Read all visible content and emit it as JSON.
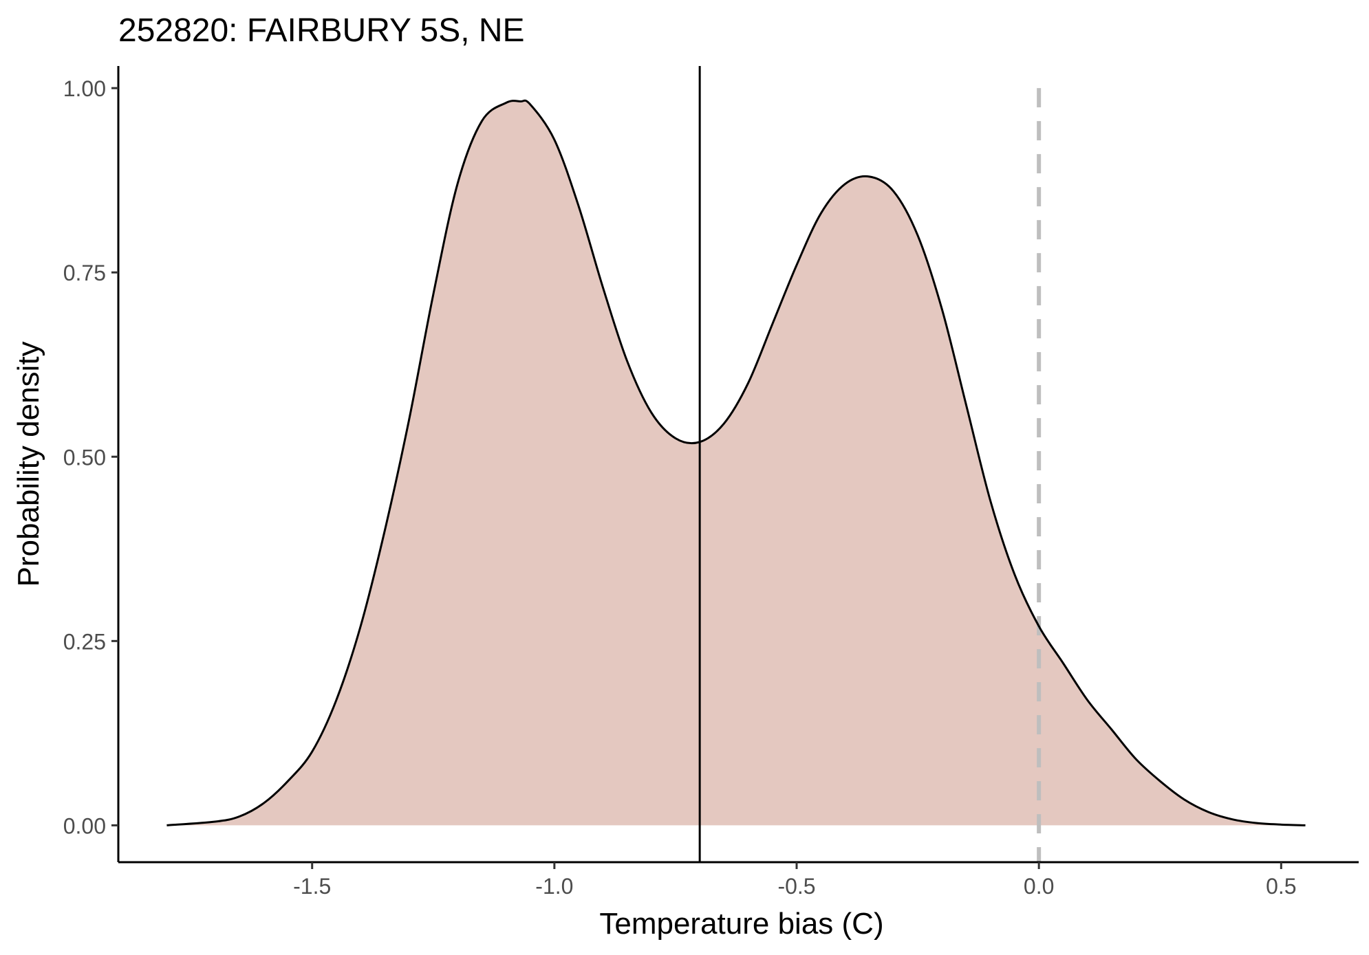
{
  "chart_data": {
    "type": "area",
    "title": "252820: FAIRBURY 5S, NE",
    "xlabel": "Temperature bias (C)",
    "ylabel": "Probability density",
    "xlim": [
      -1.9,
      0.66
    ],
    "ylim": [
      -0.05,
      1.03
    ],
    "x_ticks": [
      -1.5,
      -1.0,
      -0.5,
      0.0,
      0.5
    ],
    "x_tick_labels": [
      "-1.5",
      "-1.0",
      "-0.5",
      "0.0",
      "0.5"
    ],
    "y_ticks": [
      0.0,
      0.25,
      0.5,
      0.75,
      1.0
    ],
    "y_tick_labels": [
      "0.00",
      "0.25",
      "0.50",
      "0.75",
      "1.00"
    ],
    "grid": false,
    "fill_color": "#e4c8c0",
    "line_color": "#000000",
    "reference_lines": [
      {
        "x": -0.7,
        "style": "solid",
        "color": "#000000"
      },
      {
        "x": 0.0,
        "style": "dashed",
        "color": "#bebebe"
      }
    ],
    "series": [
      {
        "x": [
          -1.8,
          -1.7,
          -1.65,
          -1.6,
          -1.55,
          -1.5,
          -1.45,
          -1.4,
          -1.35,
          -1.3,
          -1.25,
          -1.2,
          -1.15,
          -1.1,
          -1.07,
          -1.05,
          -1.0,
          -0.95,
          -0.9,
          -0.85,
          -0.8,
          -0.75,
          -0.7,
          -0.65,
          -0.6,
          -0.55,
          -0.5,
          -0.45,
          -0.4,
          -0.35,
          -0.3,
          -0.25,
          -0.2,
          -0.15,
          -0.1,
          -0.05,
          0.0,
          0.05,
          0.1,
          0.15,
          0.2,
          0.25,
          0.3,
          0.35,
          0.4,
          0.45,
          0.5,
          0.55
        ],
        "y": [
          0.0,
          0.005,
          0.012,
          0.03,
          0.06,
          0.1,
          0.17,
          0.27,
          0.4,
          0.55,
          0.72,
          0.87,
          0.955,
          0.98,
          0.982,
          0.978,
          0.93,
          0.84,
          0.73,
          0.63,
          0.56,
          0.525,
          0.52,
          0.545,
          0.6,
          0.68,
          0.76,
          0.83,
          0.87,
          0.88,
          0.86,
          0.8,
          0.7,
          0.57,
          0.44,
          0.34,
          0.27,
          0.22,
          0.17,
          0.13,
          0.09,
          0.06,
          0.035,
          0.018,
          0.008,
          0.003,
          0.001,
          0.0
        ]
      }
    ]
  }
}
